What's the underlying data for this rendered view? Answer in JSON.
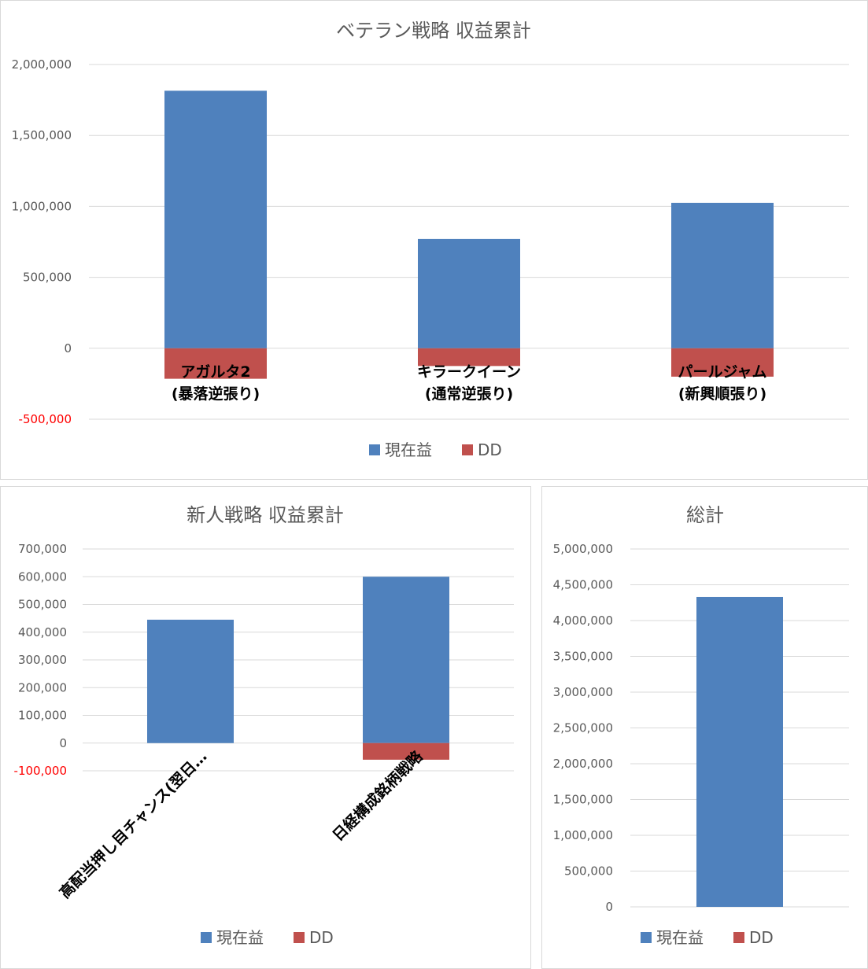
{
  "colors": {
    "profit": "#4f81bd",
    "dd": "#c0504d",
    "negative_tick": "#ff0000"
  },
  "legend": {
    "profit": "現在益",
    "dd": "DD"
  },
  "chart_data": [
    {
      "id": "veteran",
      "type": "bar",
      "stacked": true,
      "title": "ベテラン戦略 収益累計",
      "categories": [
        [
          "アガルタ2",
          "(暴落逆張り)"
        ],
        [
          "キラークイーン",
          "(通常逆張り)"
        ],
        [
          "パールジャム",
          "(新興順張り)"
        ]
      ],
      "series": [
        {
          "name": "現在益",
          "values": [
            1815000,
            770000,
            1025000
          ]
        },
        {
          "name": "DD",
          "values": [
            -215000,
            -125000,
            -200000
          ]
        }
      ],
      "ylim": [
        -500000,
        2000000
      ],
      "yticks": [
        2000000,
        1500000,
        1000000,
        500000,
        0,
        -500000
      ],
      "ytick_labels": [
        "2,000,000",
        "1,500,000",
        "1,000,000",
        "500,000",
        "0",
        "-500,000"
      ],
      "grid": true,
      "legend_position": "bottom"
    },
    {
      "id": "rookie",
      "type": "bar",
      "stacked": true,
      "title": "新人戦略 収益累計",
      "categories": [
        "高配当押し目チャンス(翌日…",
        "日経構成銘柄戦略"
      ],
      "series": [
        {
          "name": "現在益",
          "values": [
            445000,
            600000
          ]
        },
        {
          "name": "DD",
          "values": [
            0,
            -60000
          ]
        }
      ],
      "ylim": [
        -100000,
        700000
      ],
      "yticks": [
        700000,
        600000,
        500000,
        400000,
        300000,
        200000,
        100000,
        0,
        -100000
      ],
      "ytick_labels": [
        "700,000",
        "600,000",
        "500,000",
        "400,000",
        "300,000",
        "200,000",
        "100,000",
        "0",
        "-100,000"
      ],
      "grid": true,
      "legend_position": "bottom"
    },
    {
      "id": "total",
      "type": "bar",
      "stacked": true,
      "title": "総計",
      "categories": [
        ""
      ],
      "series": [
        {
          "name": "現在益",
          "values": [
            4330000
          ]
        },
        {
          "name": "DD",
          "values": [
            0
          ]
        }
      ],
      "ylim": [
        0,
        5000000
      ],
      "yticks": [
        5000000,
        4500000,
        4000000,
        3500000,
        3000000,
        2500000,
        2000000,
        1500000,
        1000000,
        500000,
        0
      ],
      "ytick_labels": [
        "5,000,000",
        "4,500,000",
        "4,000,000",
        "3,500,000",
        "3,000,000",
        "2,500,000",
        "2,000,000",
        "1,500,000",
        "1,000,000",
        "500,000",
        "0"
      ],
      "grid": true,
      "legend_position": "bottom"
    }
  ]
}
